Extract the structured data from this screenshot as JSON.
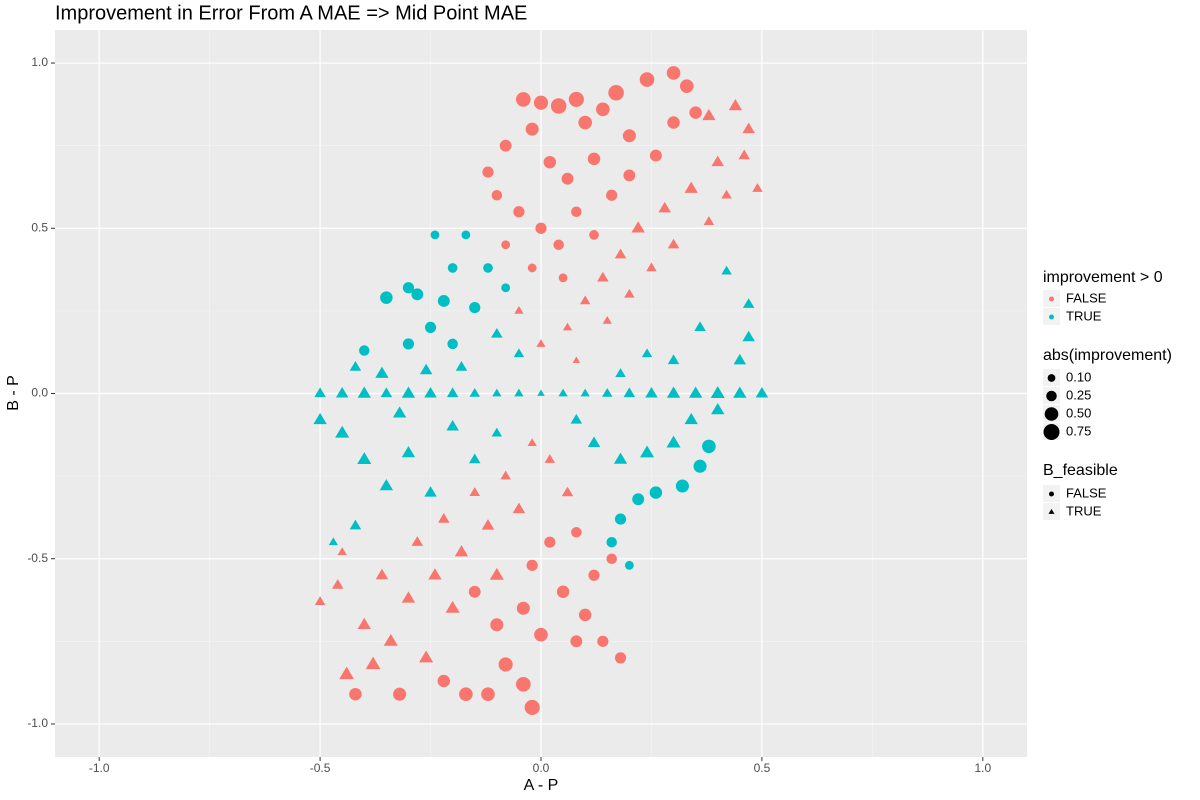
{
  "chart_data": {
    "type": "scatter",
    "title": "Improvement in Error From A MAE => Mid Point MAE",
    "x_label": "A - P",
    "y_label": "B - P",
    "xlim": [
      -1.1,
      1.1
    ],
    "ylim": [
      -1.1,
      1.1
    ],
    "xticks": [
      {
        "value": -1.0,
        "label": "-1.0"
      },
      -0.5,
      {
        "value": 0.0,
        "label": "0.0"
      },
      0.5,
      {
        "value": 1.0,
        "label": "1.0"
      }
    ],
    "yticks": [
      {
        "value": -1.0,
        "label": "-1.0"
      },
      -0.5,
      {
        "value": 0.0,
        "label": "0.0"
      },
      0.5,
      {
        "value": 1.0,
        "label": "1.0"
      }
    ],
    "x_minor_ticks": [
      -0.75,
      -0.25,
      0.25,
      0.75
    ],
    "y_minor_ticks": [
      -0.75,
      -0.25,
      0.25,
      0.75
    ],
    "grid": true,
    "color_legend": {
      "title": "improvement > 0"
    },
    "size_legend": {
      "title": "abs(improvement)",
      "values": [
        {
          "value": 0.1,
          "label": "0.10"
        },
        0.25,
        {
          "value": 0.5,
          "label": "0.50"
        },
        0.75
      ]
    },
    "shape_legend": {
      "title": "B_feasible",
      "labels": [
        "FALSE",
        "TRUE"
      ]
    },
    "series": [
      {
        "name": "FALSE",
        "color": "#F8766D",
        "x": [
          -0.04,
          0,
          0.04,
          0.08,
          0.14,
          0.17,
          0.24,
          0.3,
          0.33,
          0.2,
          0.1,
          -0.02,
          -0.08,
          -0.12,
          0.02,
          0.06,
          0.12,
          0.16,
          0.2,
          0.26,
          0.3,
          0.35,
          -0.1,
          -0.05,
          0,
          0.04,
          0.08,
          0.12,
          -0.08,
          -0.02,
          0.05,
          0.38,
          0.44,
          0.47,
          0.49,
          0.4,
          0.34,
          0.28,
          0.22,
          0.18,
          0.14,
          0.1,
          0.06,
          0.3,
          0.38,
          0.42,
          0.25,
          0.2,
          0.15,
          0,
          -0.05,
          0.46,
          0.08,
          -0.5,
          -0.46,
          -0.44,
          -0.38,
          -0.4,
          -0.34,
          -0.36,
          -0.3,
          -0.28,
          -0.24,
          -0.22,
          -0.18,
          -0.15,
          -0.12,
          -0.08,
          -0.05,
          -0.02,
          0.02,
          0.06,
          -0.1,
          -0.2,
          -0.26,
          -0.45,
          -0.42,
          -0.32,
          -0.22,
          -0.17,
          -0.12,
          -0.04,
          -0.02,
          -0.08,
          0,
          0.08,
          0.1,
          0.12,
          0.16,
          0.05,
          -0.04,
          -0.1,
          -0.15,
          0.02,
          0.08,
          -0.02,
          0.18,
          0.14
        ],
        "y": [
          0.89,
          0.88,
          0.87,
          0.89,
          0.86,
          0.91,
          0.95,
          0.97,
          0.93,
          0.78,
          0.82,
          0.8,
          0.75,
          0.67,
          0.7,
          0.65,
          0.71,
          0.6,
          0.66,
          0.72,
          0.82,
          0.85,
          0.6,
          0.55,
          0.5,
          0.45,
          0.55,
          0.48,
          0.45,
          0.38,
          0.35,
          0.84,
          0.87,
          0.8,
          0.62,
          0.7,
          0.62,
          0.56,
          0.5,
          0.42,
          0.35,
          0.28,
          0.2,
          0.45,
          0.52,
          0.6,
          0.38,
          0.3,
          0.22,
          0.15,
          0.25,
          0.72,
          0.1,
          -0.63,
          -0.58,
          -0.85,
          -0.82,
          -0.7,
          -0.75,
          -0.55,
          -0.62,
          -0.45,
          -0.55,
          -0.38,
          -0.48,
          -0.3,
          -0.4,
          -0.25,
          -0.35,
          -0.15,
          -0.2,
          -0.3,
          -0.55,
          -0.65,
          -0.8,
          -0.48,
          -0.91,
          -0.91,
          -0.87,
          -0.91,
          -0.91,
          -0.88,
          -0.95,
          -0.82,
          -0.73,
          -0.75,
          -0.67,
          -0.55,
          -0.5,
          -0.6,
          -0.65,
          -0.7,
          -0.6,
          -0.45,
          -0.42,
          -0.52,
          -0.8,
          -0.75
        ],
        "sizes": [
          0.6,
          0.55,
          0.7,
          0.65,
          0.5,
          0.7,
          0.6,
          0.5,
          0.5,
          0.45,
          0.5,
          0.45,
          0.35,
          0.3,
          0.4,
          0.35,
          0.4,
          0.3,
          0.35,
          0.35,
          0.4,
          0.4,
          0.25,
          0.3,
          0.3,
          0.25,
          0.25,
          0.2,
          0.15,
          0.15,
          0.15,
          0.3,
          0.3,
          0.25,
          0.15,
          0.25,
          0.3,
          0.25,
          0.3,
          0.2,
          0.2,
          0.15,
          0.1,
          0.2,
          0.15,
          0.15,
          0.15,
          0.15,
          0.1,
          0.1,
          0.1,
          0.2,
          0.05,
          0.15,
          0.2,
          0.4,
          0.4,
          0.3,
          0.35,
          0.25,
          0.3,
          0.2,
          0.3,
          0.2,
          0.3,
          0.15,
          0.25,
          0.15,
          0.25,
          0.1,
          0.15,
          0.2,
          0.35,
          0.35,
          0.35,
          0.1,
          0.4,
          0.45,
          0.4,
          0.5,
          0.5,
          0.6,
          0.65,
          0.55,
          0.5,
          0.35,
          0.4,
          0.3,
          0.25,
          0.4,
          0.45,
          0.45,
          0.35,
          0.3,
          0.25,
          0.3,
          0.3,
          0.3
        ],
        "feasible": [
          false,
          false,
          false,
          false,
          false,
          false,
          false,
          false,
          false,
          false,
          false,
          false,
          false,
          false,
          false,
          false,
          false,
          false,
          false,
          false,
          false,
          false,
          false,
          false,
          false,
          false,
          false,
          false,
          false,
          false,
          false,
          true,
          true,
          true,
          true,
          true,
          true,
          true,
          true,
          true,
          true,
          true,
          true,
          true,
          true,
          true,
          true,
          true,
          true,
          true,
          true,
          true,
          true,
          true,
          true,
          true,
          true,
          true,
          true,
          true,
          true,
          true,
          true,
          true,
          true,
          true,
          true,
          true,
          true,
          true,
          true,
          true,
          true,
          true,
          true,
          true,
          false,
          false,
          false,
          false,
          false,
          false,
          false,
          false,
          false,
          false,
          false,
          false,
          false,
          false,
          false,
          false,
          false,
          false,
          false,
          false,
          false,
          false
        ]
      },
      {
        "name": "TRUE",
        "color": "#00BFC4",
        "x": [
          -0.5,
          -0.45,
          -0.4,
          -0.35,
          -0.3,
          -0.25,
          -0.2,
          -0.15,
          -0.1,
          -0.05,
          0,
          0.05,
          0.1,
          0.15,
          0.2,
          0.25,
          0.3,
          0.35,
          0.4,
          0.45,
          0.5,
          -0.24,
          -0.17,
          -0.3,
          -0.35,
          -0.28,
          -0.22,
          -0.15,
          -0.25,
          -0.2,
          -0.3,
          -0.4,
          -0.1,
          -0.05,
          -0.18,
          -0.26,
          -0.12,
          -0.08,
          -0.36,
          -0.42,
          -0.2,
          0.38,
          0.36,
          0.32,
          0.26,
          0.22,
          0.18,
          0.16,
          0.2,
          0.3,
          0.24,
          0.18,
          0.12,
          0.08,
          0.34,
          0.4,
          0.45,
          0.47,
          0.42,
          0.36,
          0.3,
          0.24,
          0.18,
          0.47,
          -0.45,
          -0.4,
          -0.35,
          -0.3,
          -0.25,
          -0.42,
          -0.2,
          -0.15,
          -0.1,
          -0.47,
          -0.5,
          -0.32
        ],
        "y": [
          0,
          0,
          0,
          0,
          0,
          0,
          0,
          0,
          0,
          0,
          0,
          0,
          0,
          0,
          0,
          0,
          0,
          0,
          0,
          0,
          0,
          0.48,
          0.48,
          0.32,
          0.29,
          0.3,
          0.28,
          0.26,
          0.2,
          0.15,
          0.15,
          0.13,
          0.18,
          0.12,
          0.08,
          0.07,
          0.38,
          0.32,
          0.06,
          0.08,
          0.38,
          -0.16,
          -0.22,
          -0.28,
          -0.3,
          -0.32,
          -0.38,
          -0.45,
          -0.52,
          -0.15,
          -0.18,
          -0.2,
          -0.15,
          -0.08,
          -0.08,
          -0.05,
          0.1,
          0.27,
          0.37,
          0.2,
          0.1,
          0.12,
          0.06,
          0.17,
          -0.12,
          -0.2,
          -0.28,
          -0.18,
          -0.3,
          -0.4,
          -0.1,
          -0.2,
          -0.12,
          -0.45,
          -0.08,
          -0.06
        ],
        "sizes": [
          0.2,
          0.25,
          0.3,
          0.2,
          0.3,
          0.25,
          0.2,
          0.15,
          0.1,
          0.1,
          0.05,
          0.1,
          0.1,
          0.15,
          0.2,
          0.25,
          0.3,
          0.3,
          0.35,
          0.3,
          0.25,
          0.15,
          0.15,
          0.3,
          0.4,
          0.35,
          0.35,
          0.3,
          0.3,
          0.25,
          0.3,
          0.25,
          0.2,
          0.15,
          0.2,
          0.25,
          0.2,
          0.15,
          0.3,
          0.2,
          0.2,
          0.5,
          0.45,
          0.45,
          0.4,
          0.35,
          0.3,
          0.25,
          0.15,
          0.35,
          0.35,
          0.3,
          0.25,
          0.2,
          0.3,
          0.3,
          0.25,
          0.2,
          0.15,
          0.2,
          0.2,
          0.15,
          0.15,
          0.25,
          0.35,
          0.35,
          0.3,
          0.3,
          0.25,
          0.2,
          0.25,
          0.2,
          0.15,
          0.1,
          0.3,
          0.3
        ],
        "feasible": [
          true,
          true,
          true,
          true,
          true,
          true,
          true,
          true,
          true,
          true,
          true,
          true,
          true,
          true,
          true,
          true,
          true,
          true,
          true,
          true,
          true,
          false,
          false,
          false,
          false,
          false,
          false,
          false,
          false,
          false,
          false,
          false,
          true,
          true,
          true,
          true,
          false,
          false,
          true,
          true,
          false,
          false,
          false,
          false,
          false,
          false,
          false,
          false,
          false,
          true,
          true,
          true,
          true,
          true,
          true,
          true,
          true,
          true,
          true,
          true,
          true,
          true,
          true,
          true,
          true,
          true,
          true,
          true,
          true,
          true,
          true,
          true,
          true,
          true,
          true,
          true
        ]
      }
    ]
  }
}
